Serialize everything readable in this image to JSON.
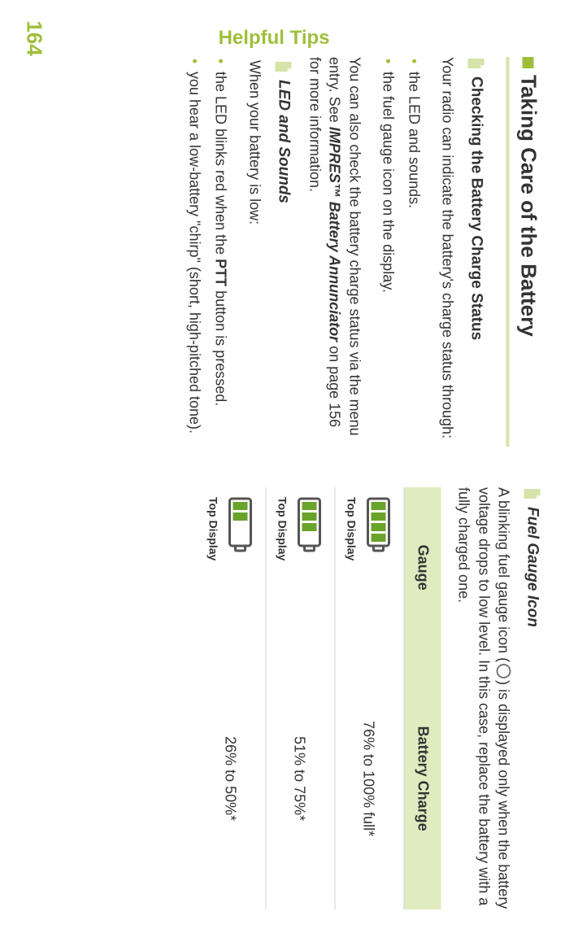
{
  "colors": {
    "accent": "#9fbf3b",
    "accent_light": "#d6e3a9",
    "text": "#333333",
    "battery_fill": "#6aa329",
    "battery_stroke": "#555555",
    "header_bg": "#e0ebc0",
    "border": "#d0d0d0",
    "bullet": "#9fbf3b"
  },
  "page_number": "164",
  "side_label": "Helpful Tips",
  "chapter_title": "Taking Care of the Battery",
  "left": {
    "section1_title": "Checking the Battery Charge Status",
    "intro": "Your radio can indicate the battery's charge status through:",
    "bullet1": "the LED and sounds.",
    "bullet2": "the fuel gauge icon on the display.",
    "para2_a": "You can also check the battery charge status via the menu entry. See ",
    "para2_ref": "IMPRES™ Battery Annunciator",
    "para2_b": " on page 156 for more information.",
    "section2_title": "LED and Sounds",
    "para3": "When your battery is low:",
    "bullet3": "the LED blinks red when the ",
    "bullet3_bold": "PTT",
    "bullet3_b": " button is pressed.",
    "bullet4": "you hear a low-battery \"chirp\" (short, high-pitched tone)."
  },
  "right": {
    "section_title": "Fuel Gauge Icon",
    "intro_a": "A blinking fuel gauge icon (",
    "intro_b": ") is displayed only when the battery voltage drops to low level. In this case, replace the battery with a fully charged one.",
    "th1": "Gauge",
    "th2": "Battery Charge",
    "top_display": "Top Display",
    "rows": [
      {
        "bars": 4,
        "charge": "76% to 100% full*"
      },
      {
        "bars": 3,
        "charge": "51% to 75%*"
      },
      {
        "bars": 2,
        "charge": "26% to 50%*"
      }
    ]
  }
}
